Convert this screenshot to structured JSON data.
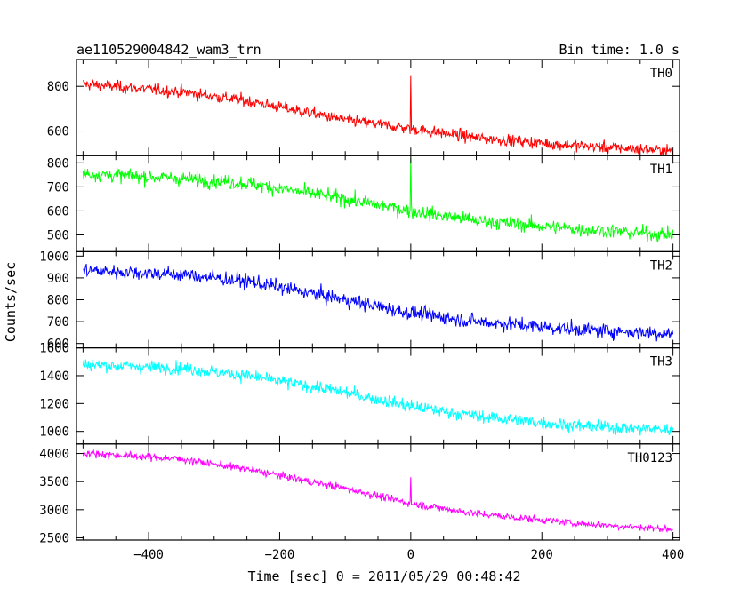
{
  "chart_data": {
    "type": "line",
    "title": "ae110529004842_wam3_trn",
    "bin_time_label": "Bin time: 1.0 s",
    "xlabel": "Time [sec] 0 = 2011/05/29 00:48:42",
    "ylabel": "Counts/sec",
    "xlim": [
      -510,
      410
    ],
    "x_ticks": [
      -400,
      -200,
      0,
      200,
      400
    ],
    "x_tick_labels": [
      "−400",
      "−200",
      "0",
      "200",
      "400"
    ],
    "grid": false,
    "colors": {
      "TH0": "#ff0000",
      "TH1": "#00ff00",
      "TH2": "#0000ff",
      "TH3": "#00ffff",
      "TH0123": "#ff00ff"
    },
    "panels": [
      {
        "name": "TH0",
        "color": "#ff0000",
        "ylim": [
          490,
          920
        ],
        "y_ticks": [
          600,
          800
        ],
        "y_tick_labels": [
          "600",
          "800"
        ],
        "trend": [
          [
            -500,
            810
          ],
          [
            -350,
            775
          ],
          [
            -250,
            735
          ],
          [
            -100,
            650
          ],
          [
            0,
            610
          ],
          [
            100,
            570
          ],
          [
            250,
            535
          ],
          [
            400,
            510
          ]
        ],
        "noise": 22,
        "spike": {
          "x": 0,
          "y": 850
        }
      },
      {
        "name": "TH1",
        "color": "#00ff00",
        "ylim": [
          430,
          830
        ],
        "y_ticks": [
          500,
          600,
          700,
          800
        ],
        "y_tick_labels": [
          "500",
          "600",
          "700",
          "800"
        ],
        "trend": [
          [
            -500,
            755
          ],
          [
            -350,
            735
          ],
          [
            -250,
            715
          ],
          [
            -100,
            650
          ],
          [
            0,
            600
          ],
          [
            100,
            560
          ],
          [
            250,
            525
          ],
          [
            400,
            500
          ]
        ],
        "noise": 25,
        "spike": {
          "x": 0,
          "y": 820
        }
      },
      {
        "name": "TH2",
        "color": "#0000ff",
        "ylim": [
          580,
          1020
        ],
        "y_ticks": [
          600,
          700,
          800,
          900,
          1000
        ],
        "y_tick_labels": [
          "600",
          "700",
          "800",
          "900",
          "1000"
        ],
        "trend": [
          [
            -500,
            935
          ],
          [
            -350,
            915
          ],
          [
            -250,
            885
          ],
          [
            -100,
            800
          ],
          [
            0,
            740
          ],
          [
            100,
            700
          ],
          [
            250,
            665
          ],
          [
            400,
            645
          ]
        ],
        "noise": 28,
        "spike": null
      },
      {
        "name": "TH3",
        "color": "#00ffff",
        "ylim": [
          910,
          1600
        ],
        "y_ticks": [
          1000,
          1200,
          1400,
          1600
        ],
        "y_tick_labels": [
          "1000",
          "1200",
          "1400",
          "1600"
        ],
        "trend": [
          [
            -500,
            1480
          ],
          [
            -350,
            1455
          ],
          [
            -250,
            1400
          ],
          [
            -100,
            1280
          ],
          [
            0,
            1180
          ],
          [
            100,
            1110
          ],
          [
            250,
            1040
          ],
          [
            400,
            1010
          ]
        ],
        "noise": 38,
        "spike": null
      },
      {
        "name": "TH0123",
        "color": "#ff00ff",
        "ylim": [
          2460,
          4170
        ],
        "y_ticks": [
          2500,
          3000,
          3500,
          4000
        ],
        "y_tick_labels": [
          "2500",
          "3000",
          "3500",
          "4000"
        ],
        "trend": [
          [
            -500,
            4010
          ],
          [
            -350,
            3900
          ],
          [
            -250,
            3720
          ],
          [
            -100,
            3380
          ],
          [
            0,
            3110
          ],
          [
            100,
            2930
          ],
          [
            250,
            2760
          ],
          [
            400,
            2650
          ]
        ],
        "noise": 55,
        "spike": {
          "x": 0,
          "y": 3580
        }
      }
    ]
  }
}
